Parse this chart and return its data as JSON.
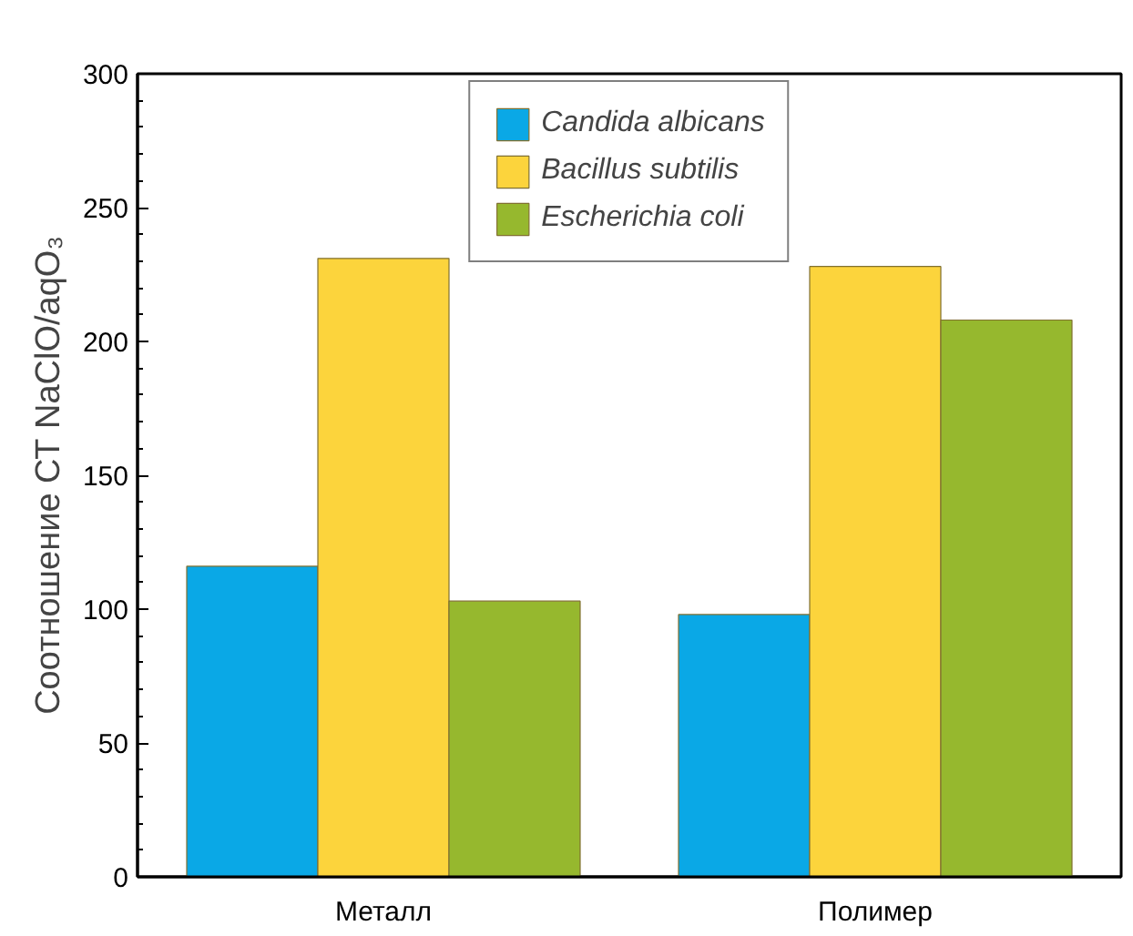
{
  "chart_data": {
    "type": "bar",
    "ylabel": "Соотношение СТ NaClO/aqO₃",
    "categories": [
      "Металл",
      "Полимер"
    ],
    "series": [
      {
        "name": "Candida albicans",
        "color": "#0aa8e6",
        "values": [
          116,
          98
        ]
      },
      {
        "name": "Bacillus subtilis",
        "color": "#fcd43c",
        "values": [
          231,
          228
        ]
      },
      {
        "name": "Escherichia coli",
        "color": "#96b82e",
        "values": [
          103,
          208
        ]
      }
    ],
    "ylim": [
      0,
      300
    ],
    "yticks": [
      0,
      50,
      100,
      150,
      200,
      250,
      300
    ],
    "grid": false,
    "legend": "top"
  }
}
